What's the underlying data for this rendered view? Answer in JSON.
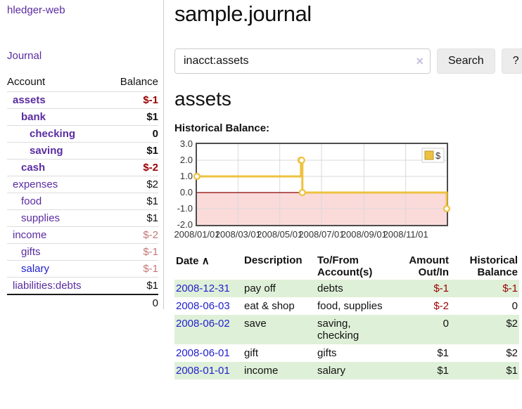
{
  "sidebar": {
    "app_title": "hledger-web",
    "journal_link": "Journal",
    "account_header": "Account",
    "balance_header": "Balance",
    "accounts": [
      {
        "name": "assets",
        "balance": "$-1",
        "indent": 1,
        "bold": true,
        "neg": "strong"
      },
      {
        "name": "bank",
        "balance": "$1",
        "indent": 2,
        "bold": true,
        "neg": "none"
      },
      {
        "name": "checking",
        "balance": "0",
        "indent": 3,
        "bold": true,
        "neg": "none"
      },
      {
        "name": "saving",
        "balance": "$1",
        "indent": 3,
        "bold": true,
        "neg": "none"
      },
      {
        "name": "cash",
        "balance": "$-2",
        "indent": 2,
        "bold": true,
        "neg": "strong"
      },
      {
        "name": "expenses",
        "balance": "$2",
        "indent": 1,
        "bold": false,
        "neg": "none"
      },
      {
        "name": "food",
        "balance": "$1",
        "indent": 2,
        "bold": false,
        "neg": "none"
      },
      {
        "name": "supplies",
        "balance": "$1",
        "indent": 2,
        "bold": false,
        "neg": "none"
      },
      {
        "name": "income",
        "balance": "$-2",
        "indent": 1,
        "bold": false,
        "neg": "soft"
      },
      {
        "name": "gifts",
        "balance": "$-1",
        "indent": 2,
        "bold": false,
        "neg": "soft"
      },
      {
        "name": "salary",
        "balance": "$-1",
        "indent": 2,
        "bold": false,
        "neg": "soft",
        "link_color": "blue"
      },
      {
        "name": "liabilities:debts",
        "balance": "$1",
        "indent": 1,
        "bold": false,
        "neg": "none"
      }
    ],
    "total": "0"
  },
  "main": {
    "page_title": "sample.journal",
    "search": {
      "value": "inacct:assets",
      "clear_icon": "×",
      "search_button": "Search",
      "help_button": "?"
    },
    "section_title": "assets",
    "chart_label": "Historical Balance:"
  },
  "chart_data": {
    "type": "line",
    "title": "Historical Balance:",
    "step": true,
    "series": [
      {
        "name": "$",
        "points": [
          {
            "x": "2008/01/01",
            "y": 1
          },
          {
            "x": "2008/06/01",
            "y": 2
          },
          {
            "x": "2008/06/02",
            "y": 2
          },
          {
            "x": "2008/06/03",
            "y": 0
          },
          {
            "x": "2008/12/31",
            "y": -1
          }
        ]
      }
    ],
    "x_start": "2008/01/01",
    "x_range_days": 365,
    "x_ticks": [
      "2008/01/01",
      "2008/03/01",
      "2008/05/01",
      "2008/07/01",
      "2008/09/01",
      "2008/11/01"
    ],
    "y_ticks": [
      "3.0",
      "2.0",
      "1.0",
      "0.0",
      "-1.0",
      "-2.0"
    ],
    "ylim": [
      -2,
      3
    ],
    "legend": "$",
    "legend_position": "top-right",
    "grid": true,
    "colors": {
      "line": "#EDC240",
      "marker_fill": "#ffffff",
      "legend_border": "#b8962e",
      "negative_fill": "#fbdada",
      "zero_line": "#8b0000",
      "grid": "#d9d9d9",
      "border": "#4d4d4d"
    }
  },
  "register": {
    "headers": {
      "date": "Date",
      "sort_icon": "∧",
      "description": "Description",
      "tofrom_line1": "To/From",
      "tofrom_line2": "Account(s)",
      "amount_line1": "Amount",
      "amount_line2": "Out/In",
      "hist_line1": "Historical",
      "hist_line2": "Balance"
    },
    "rows": [
      {
        "date": "2008-12-31",
        "description": "pay off",
        "accounts": [
          "debts"
        ],
        "amount": "$-1",
        "balance": "$-1",
        "amount_neg": true,
        "balance_neg": true,
        "highlight": true
      },
      {
        "date": "2008-06-03",
        "description": "eat & shop",
        "accounts": [
          "food, supplies"
        ],
        "amount": "$-2",
        "balance": "0",
        "amount_neg": true,
        "balance_neg": false,
        "highlight": false
      },
      {
        "date": "2008-06-02",
        "description": "save",
        "accounts": [
          "saving,",
          "checking"
        ],
        "amount": "0",
        "balance": "$2",
        "amount_neg": false,
        "balance_neg": false,
        "highlight": true
      },
      {
        "date": "2008-06-01",
        "description": "gift",
        "accounts": [
          "gifts"
        ],
        "amount": "$1",
        "balance": "$2",
        "amount_neg": false,
        "balance_neg": false,
        "highlight": false
      },
      {
        "date": "2008-01-01",
        "description": "income",
        "accounts": [
          "salary"
        ],
        "amount": "$1",
        "balance": "$1",
        "amount_neg": false,
        "balance_neg": false,
        "highlight": true
      }
    ]
  }
}
